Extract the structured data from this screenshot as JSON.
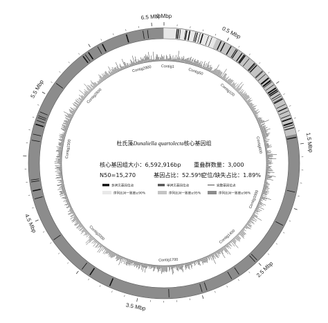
{
  "genome": {
    "length_bp": 6592916,
    "tick_major_mbp": [
      0,
      0.5,
      1.5,
      2.5,
      3.5,
      4.5,
      5.5,
      6.5
    ],
    "tick_labels": [
      "0 Mbp",
      "0.5 Mbp",
      "1.5 Mbp",
      "2.5 Mbp",
      "3.5 Mbp",
      "4.5 Mbp",
      "5.5 Mbp",
      "6.5 Mbp"
    ]
  },
  "contigs": [
    {
      "label": "Contig1",
      "mbp": 0.04
    },
    {
      "label": "Contig50",
      "mbp": 0.35
    },
    {
      "label": "Contig100",
      "mbp": 0.75
    },
    {
      "label": "Contig600",
      "mbp": 1.45
    },
    {
      "label": "Contig1000",
      "mbp": 2.05
    },
    {
      "label": "Contig1400",
      "mbp": 2.55
    },
    {
      "label": "Contig1700",
      "mbp": 3.25
    },
    {
      "label": "Contig2000",
      "mbp": 4.1
    },
    {
      "label": "Contig2300",
      "mbp": 5.1
    },
    {
      "label": "Contig2600",
      "mbp": 5.75
    },
    {
      "label": "Contig2900",
      "mbp": 6.35
    }
  ],
  "center": {
    "title_prefix": "杜氏藻",
    "title_species": "Dunaliella quartolecta",
    "title_suffix": "核心基因组",
    "line1_left": "核心基因组大小：6,592,916bp",
    "line1_right": "重叠群数量：3,000",
    "line2_left": "N50=15,270",
    "line2_mid": "基因占比：52.59%",
    "line2_right": "空位/缺失占比：1.89%"
  },
  "legend": {
    "items": [
      {
        "label": "多拷贝基因位点",
        "swatch": "#111111",
        "kind": "bar"
      },
      {
        "label": "单拷贝基因位点",
        "swatch": "#555555",
        "kind": "bar"
      },
      {
        "label": "完整基因位点",
        "swatch": "#222222",
        "kind": "line"
      },
      {
        "label": "序列比对一致度≥90%",
        "swatch": "#e8e8e8",
        "kind": "box"
      },
      {
        "label": "序列比对一致度≥95%",
        "swatch": "#c4c4c4",
        "kind": "box"
      },
      {
        "label": "序列比对一致度≥98%",
        "swatch": "#8c8c8c",
        "kind": "box"
      }
    ]
  },
  "identity_segments": [
    {
      "start_mbp": 0.0,
      "end_mbp": 0.42,
      "identity": "90"
    },
    {
      "start_mbp": 0.42,
      "end_mbp": 0.55,
      "identity": "95"
    },
    {
      "start_mbp": 0.55,
      "end_mbp": 1.42,
      "identity": "95"
    },
    {
      "start_mbp": 1.42,
      "end_mbp": 6.59,
      "identity": "98"
    }
  ],
  "colors": {
    "identity_90": "#e8e8e8",
    "identity_95": "#c4c4c4",
    "identity_98": "#8c8c8c",
    "gene_mark": "#111111",
    "ring_outline": "#555555"
  }
}
